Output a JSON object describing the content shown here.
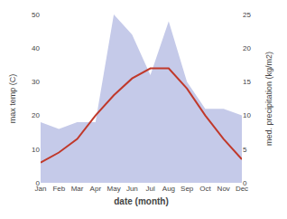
{
  "chart_data": {
    "type": "line",
    "xlabel": "date (month)",
    "ylabel": "max temp (C)",
    "y2label": "med. precipitation (kg/m2)",
    "categories": [
      "Jan",
      "Feb",
      "Mar",
      "Apr",
      "May",
      "Jun",
      "Jul",
      "Aug",
      "Sep",
      "Oct",
      "Nov",
      "Dec"
    ],
    "series": [
      {
        "type": "area",
        "axis": "y2",
        "color": "#c5cae9",
        "values": [
          9,
          8,
          9,
          9,
          25,
          22,
          16,
          24,
          15,
          11,
          11,
          10
        ]
      },
      {
        "type": "line",
        "color": "#c0392b",
        "values": [
          6,
          9,
          13,
          20,
          26,
          31,
          34,
          34,
          28,
          20,
          13,
          7
        ]
      }
    ],
    "ylim": [
      0,
      50
    ],
    "yticks": [
      0,
      10,
      20,
      30,
      40,
      50
    ],
    "y2lim": [
      0,
      25
    ],
    "y2ticks": [
      0,
      5,
      10,
      15,
      20,
      25
    ],
    "grid": false
  }
}
